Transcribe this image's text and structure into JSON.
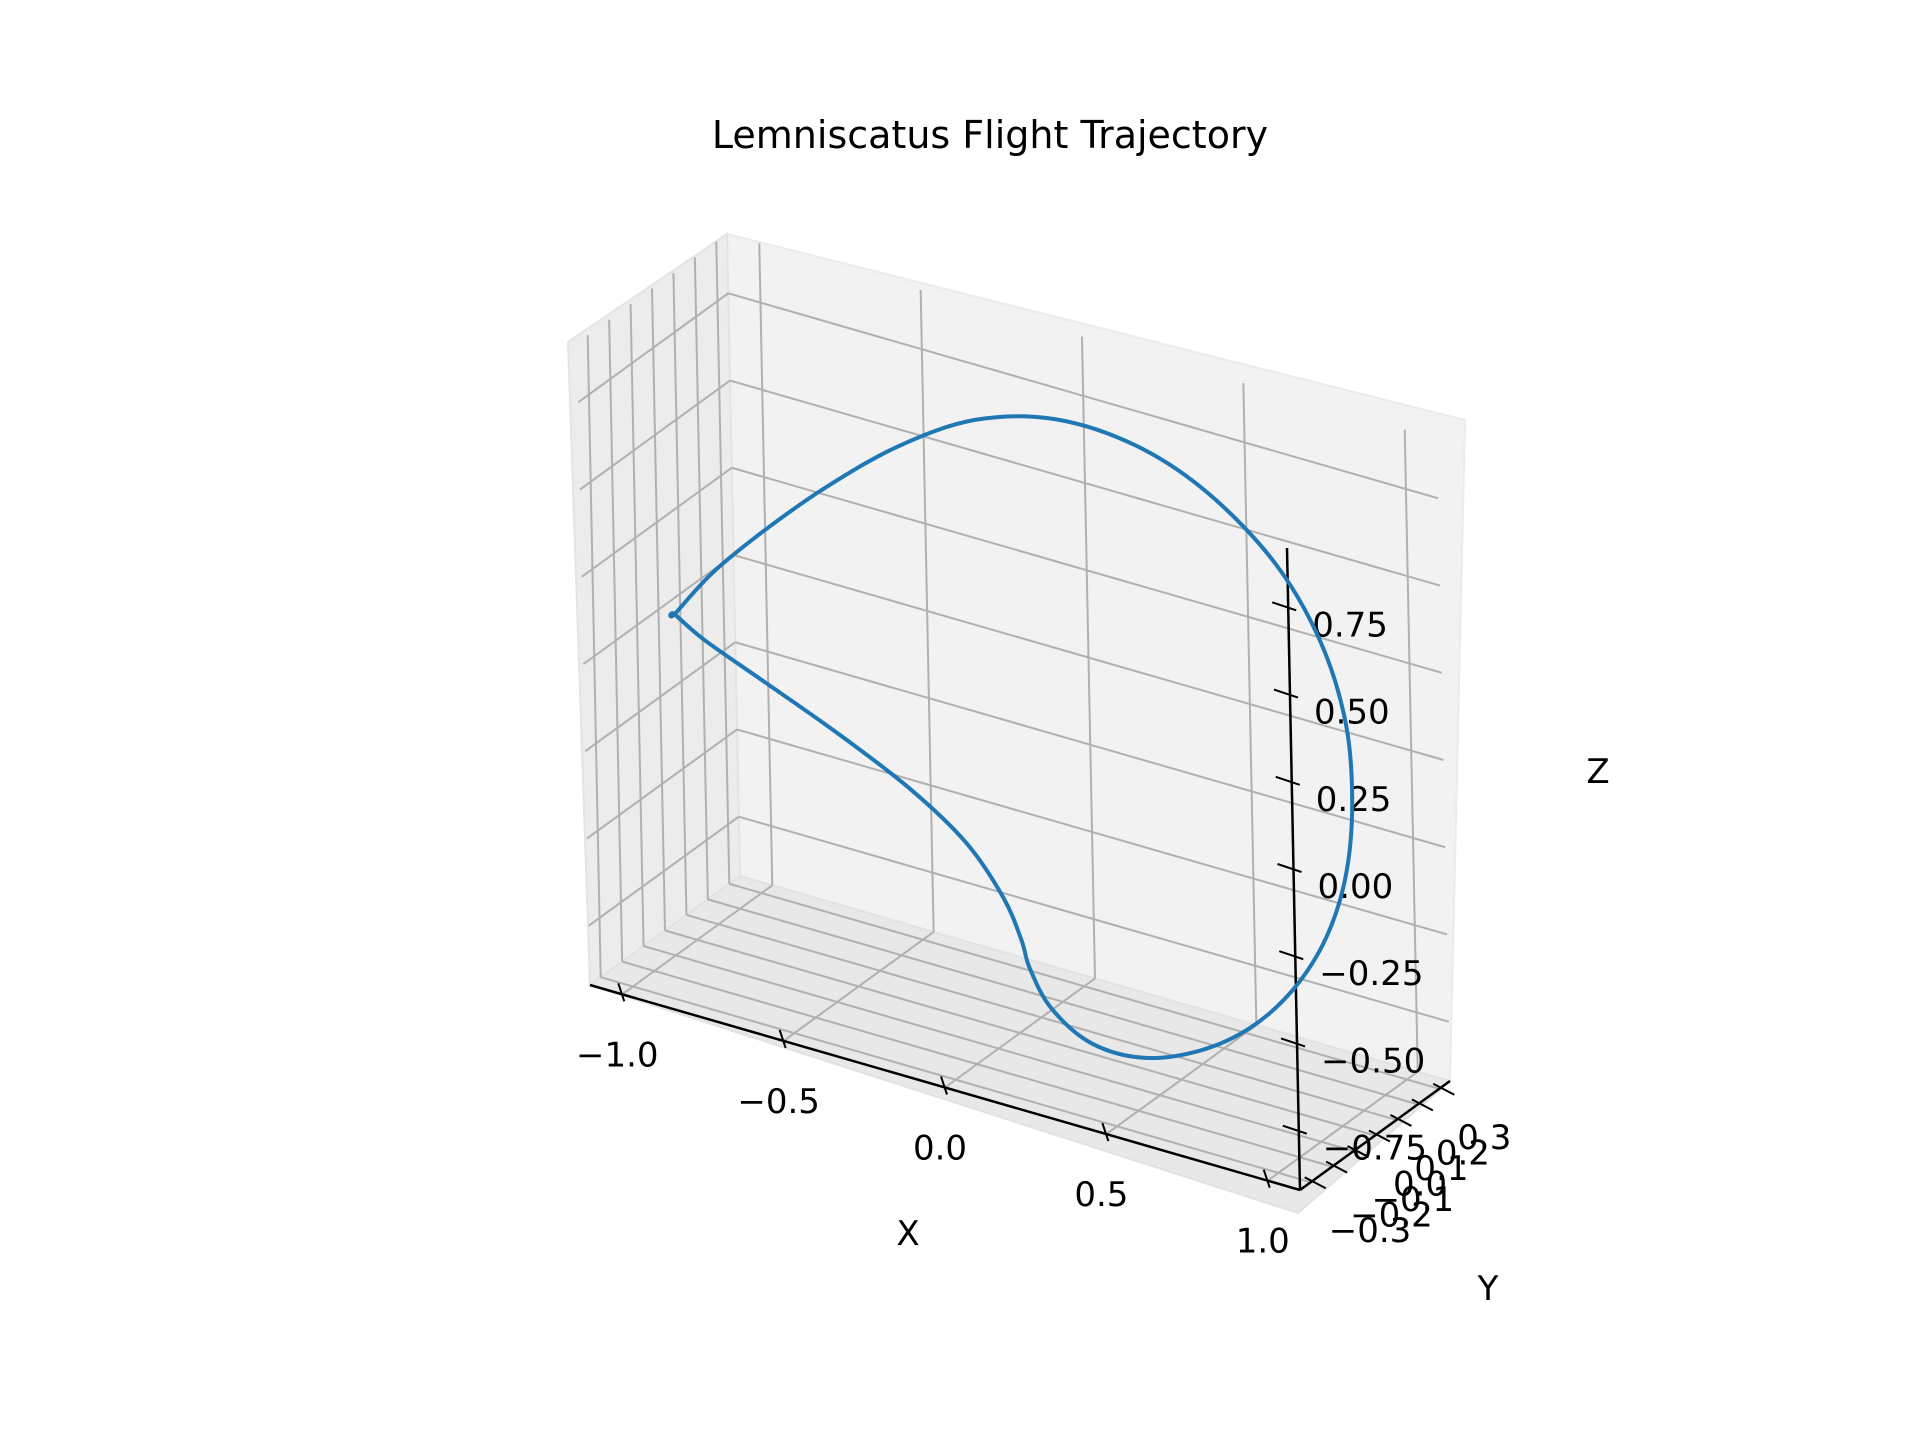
{
  "chart_data": {
    "type": "line",
    "projection": "3d",
    "title": "Lemniscatus Flight Trajectory",
    "xlabel": "X",
    "ylabel": "Y",
    "zlabel": "Z",
    "xlim": [
      -1.1,
      1.1
    ],
    "ylim": [
      -0.35,
      0.35
    ],
    "zlim": [
      -0.92,
      0.92
    ],
    "x_ticks": [
      -1.0,
      -0.5,
      0.0,
      0.5,
      1.0
    ],
    "x_tick_labels": [
      "−1.0",
      "−0.5",
      "0.0",
      "0.5",
      "1.0"
    ],
    "y_ticks": [
      -0.3,
      -0.2,
      -0.1,
      0.0,
      0.1,
      0.2,
      0.3
    ],
    "y_tick_labels": [
      "−0.3",
      "−0.2",
      "−0.1",
      "0.0",
      "0.1",
      "0.2",
      "0.3"
    ],
    "z_ticks": [
      -0.75,
      -0.5,
      -0.25,
      0.0,
      0.25,
      0.5,
      0.75
    ],
    "z_tick_labels": [
      "−0.75",
      "−0.50",
      "−0.25",
      "0.00",
      "0.25",
      "0.50",
      "0.75"
    ],
    "grid": true,
    "series": [
      {
        "color": "#1f77b4",
        "line_width": 2,
        "x": [
          -1.05,
          -0.92,
          -0.75,
          -0.55,
          -0.32,
          -0.08,
          0.17,
          0.42,
          0.64,
          0.84,
          0.97,
          1.04,
          1.05,
          1.02,
          0.95,
          0.84,
          0.7,
          0.54,
          0.36,
          0.2,
          0.08,
          0.02,
          0.0,
          -0.05,
          -0.16,
          -0.33,
          -0.55,
          -0.78,
          -0.96,
          -1.05
        ],
        "y": [
          0.0,
          -0.008,
          -0.015,
          -0.022,
          -0.028,
          -0.032,
          -0.034,
          -0.032,
          -0.028,
          -0.022,
          -0.015,
          -0.008,
          0.0,
          0.008,
          0.015,
          0.022,
          0.028,
          0.032,
          0.034,
          0.032,
          0.028,
          0.022,
          0.015,
          0.01,
          0.006,
          0.004,
          0.003,
          0.002,
          0.001,
          0.0
        ],
        "z": [
          0.0,
          0.16,
          0.33,
          0.51,
          0.69,
          0.83,
          0.9,
          0.89,
          0.81,
          0.66,
          0.47,
          0.25,
          0.02,
          -0.2,
          -0.4,
          -0.58,
          -0.73,
          -0.84,
          -0.91,
          -0.91,
          -0.84,
          -0.74,
          -0.66,
          -0.55,
          -0.42,
          -0.31,
          -0.21,
          -0.12,
          -0.05,
          0.0
        ]
      }
    ]
  }
}
